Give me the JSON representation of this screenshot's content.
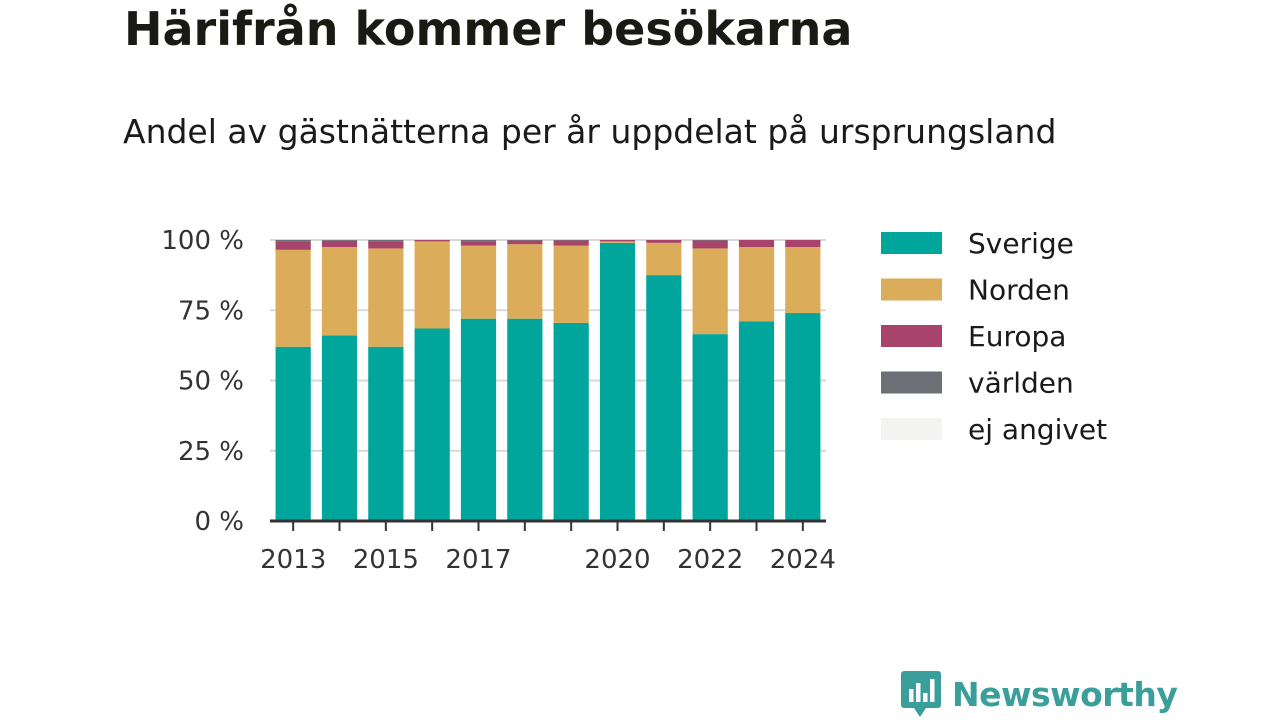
{
  "title": "Härifrån kommer besökarna",
  "subtitle": "Andel av gästnätterna per år uppdelat på ursprungsland",
  "brand": {
    "name": "Newsworthy",
    "color": "#3a9f9a"
  },
  "chart_data": {
    "type": "bar",
    "stacked": true,
    "ylim": [
      0,
      100
    ],
    "yticks": [
      0,
      25,
      50,
      75,
      100
    ],
    "ytick_labels": [
      "0 %",
      "25 %",
      "50 %",
      "75 %",
      "100 %"
    ],
    "categories": [
      "2013",
      "2014",
      "2015",
      "2016",
      "2017",
      "2018",
      "2019",
      "2020",
      "2021",
      "2022",
      "2023",
      "2024"
    ],
    "xtick_labels": [
      "2013",
      "",
      "2015",
      "",
      "2017",
      "",
      "",
      "2020",
      "",
      "2022",
      "",
      "2024"
    ],
    "grid": true,
    "legend": "right",
    "series": [
      {
        "name": "Sverige",
        "color": "#00a59b",
        "values": [
          62,
          66,
          62,
          68.5,
          72,
          72,
          70.5,
          99,
          87.5,
          66.5,
          71,
          74
        ]
      },
      {
        "name": "Norden",
        "color": "#dbad5a",
        "values": [
          34.5,
          31.5,
          35,
          31,
          26,
          26.5,
          27.5,
          0.5,
          11.5,
          30.5,
          26.5,
          23.5
        ]
      },
      {
        "name": "Europa",
        "color": "#a8436b",
        "values": [
          3,
          2.2,
          2.5,
          0.5,
          1.5,
          1.3,
          1.8,
          0.5,
          1,
          2.8,
          2.5,
          2.5
        ]
      },
      {
        "name": "världen",
        "color": "#6d6e76",
        "values": [
          0.5,
          0.3,
          0.5,
          0,
          0.5,
          0.2,
          0.2,
          0,
          0,
          0.2,
          0,
          0
        ]
      },
      {
        "name": "ej angivet",
        "color": "#f3f3f1",
        "values": [
          0,
          0,
          0,
          0,
          0,
          0,
          0,
          0,
          0,
          0,
          0,
          0
        ]
      }
    ]
  }
}
